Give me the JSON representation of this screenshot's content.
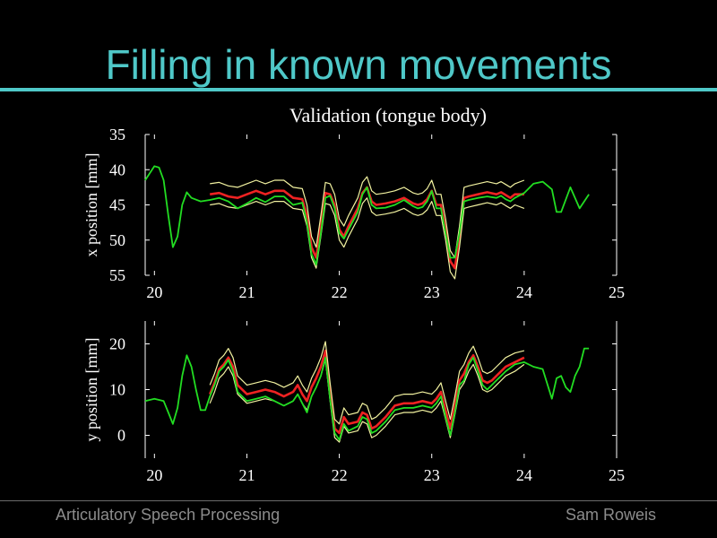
{
  "slide": {
    "title": "Filling in known movements",
    "footer_left": "Articulatory Speech Processing",
    "footer_right": "Sam Roweis"
  },
  "colors": {
    "title": "#4fc8c8",
    "rule": "#4fc8c8",
    "green": "#22dd22",
    "red": "#ee2222",
    "yellow": "#f2f2a0",
    "axis": "#ffffff"
  },
  "chart_data": [
    {
      "type": "line",
      "title": "Validation (tongue body)",
      "xlabel": "",
      "ylabel": "x position [mm]",
      "xlim": [
        19.9,
        25
      ],
      "ylim": [
        35,
        55
      ],
      "y_inverted": true,
      "xticks": [
        20,
        21,
        22,
        23,
        24,
        25
      ],
      "yticks": [
        35,
        40,
        45,
        50,
        55
      ],
      "grid": false,
      "series": [
        {
          "role": "green",
          "x": [
            19.9,
            20.0,
            20.05,
            20.1,
            20.15,
            20.2,
            20.25,
            20.3,
            20.35,
            20.4,
            20.5,
            20.6,
            20.7,
            20.8,
            20.9,
            21.0,
            21.1,
            21.2,
            21.3,
            21.4,
            21.5,
            21.6,
            21.65,
            21.7,
            21.75,
            21.8,
            21.85,
            21.9,
            21.95,
            22.0,
            22.05,
            22.1,
            22.2,
            22.25,
            22.3,
            22.35,
            22.4,
            22.5,
            22.6,
            22.7,
            22.8,
            22.85,
            22.9,
            22.95,
            23.0,
            23.05,
            23.1,
            23.15,
            23.2,
            23.25,
            23.3,
            23.35,
            23.4,
            23.5,
            23.6,
            23.7,
            23.75,
            23.8,
            23.85,
            23.9,
            24.0,
            24.1,
            24.2,
            24.3,
            24.35,
            24.4,
            24.5,
            24.6,
            24.7
          ],
          "y": [
            41.5,
            39.5,
            39.7,
            41.5,
            46.5,
            51.0,
            49.5,
            45.0,
            43.2,
            44.0,
            44.5,
            44.3,
            44.0,
            44.5,
            45.5,
            44.8,
            44.0,
            44.6,
            43.8,
            43.8,
            45.0,
            44.7,
            47.5,
            52.0,
            53.5,
            49.0,
            44.0,
            43.7,
            45.5,
            49.0,
            49.8,
            48.5,
            46.0,
            43.5,
            42.5,
            45.0,
            45.5,
            45.4,
            45.0,
            44.3,
            45.2,
            45.5,
            45.3,
            44.5,
            43.0,
            45.5,
            45.5,
            49.0,
            52.5,
            52.5,
            49.0,
            44.5,
            44.3,
            44.0,
            43.8,
            44.0,
            43.7,
            44.2,
            44.5,
            44.0,
            43.3,
            42.0,
            41.7,
            42.8,
            46.0,
            46.0,
            42.5,
            45.5,
            43.5
          ]
        },
        {
          "role": "red",
          "x": [
            20.6,
            20.7,
            20.8,
            20.9,
            21.0,
            21.1,
            21.2,
            21.3,
            21.4,
            21.5,
            21.6,
            21.65,
            21.7,
            21.75,
            21.8,
            21.85,
            21.9,
            21.95,
            22.0,
            22.05,
            22.1,
            22.2,
            22.25,
            22.3,
            22.35,
            22.4,
            22.5,
            22.6,
            22.7,
            22.8,
            22.85,
            22.9,
            22.95,
            23.0,
            23.05,
            23.1,
            23.15,
            23.2,
            23.25,
            23.3,
            23.35,
            23.4,
            23.5,
            23.6,
            23.7,
            23.75,
            23.8,
            23.85,
            23.9,
            24.0
          ],
          "y": [
            43.5,
            43.3,
            43.8,
            44.0,
            43.5,
            43.0,
            43.5,
            43.0,
            43.0,
            44.0,
            44.2,
            46.5,
            51.0,
            52.5,
            48.0,
            43.3,
            43.5,
            45.0,
            48.5,
            49.5,
            48.0,
            45.5,
            43.3,
            42.5,
            44.5,
            45.0,
            44.8,
            44.5,
            44.0,
            44.8,
            45.0,
            44.8,
            44.2,
            43.0,
            45.0,
            45.0,
            48.5,
            53.0,
            54.0,
            49.5,
            44.0,
            43.8,
            43.5,
            43.2,
            43.5,
            43.2,
            43.6,
            44.0,
            43.5,
            43.5
          ]
        },
        {
          "role": "yellow",
          "x": [
            20.6,
            20.7,
            20.8,
            20.9,
            21.0,
            21.1,
            21.2,
            21.3,
            21.4,
            21.5,
            21.6,
            21.65,
            21.7,
            21.75,
            21.8,
            21.85,
            21.9,
            21.95,
            22.0,
            22.05,
            22.1,
            22.2,
            22.25,
            22.3,
            22.35,
            22.4,
            22.5,
            22.6,
            22.7,
            22.8,
            22.85,
            22.9,
            22.95,
            23.0,
            23.05,
            23.1,
            23.15,
            23.2,
            23.25,
            23.3,
            23.35,
            23.4,
            23.5,
            23.6,
            23.7,
            23.75,
            23.8,
            23.85,
            23.9,
            24.0
          ],
          "y": [
            42.0,
            41.8,
            42.3,
            42.5,
            42.0,
            41.5,
            42.0,
            41.5,
            41.5,
            42.5,
            42.7,
            45.0,
            49.5,
            51.0,
            46.5,
            41.8,
            42.0,
            43.5,
            47.0,
            48.0,
            46.5,
            44.0,
            41.8,
            41.0,
            43.0,
            43.5,
            43.3,
            43.0,
            42.5,
            43.3,
            43.5,
            43.3,
            42.7,
            41.5,
            43.5,
            43.5,
            47.0,
            51.5,
            52.5,
            48.0,
            42.5,
            42.3,
            42.0,
            41.7,
            42.0,
            41.7,
            42.1,
            42.5,
            42.0,
            41.5
          ]
        },
        {
          "role": "yellow",
          "x": [
            20.6,
            20.7,
            20.8,
            20.9,
            21.0,
            21.1,
            21.2,
            21.3,
            21.4,
            21.5,
            21.6,
            21.65,
            21.7,
            21.75,
            21.8,
            21.85,
            21.9,
            21.95,
            22.0,
            22.05,
            22.1,
            22.2,
            22.25,
            22.3,
            22.35,
            22.4,
            22.5,
            22.6,
            22.7,
            22.8,
            22.85,
            22.9,
            22.95,
            23.0,
            23.05,
            23.1,
            23.15,
            23.2,
            23.25,
            23.3,
            23.35,
            23.4,
            23.5,
            23.6,
            23.7,
            23.75,
            23.8,
            23.85,
            23.9,
            24.0
          ],
          "y": [
            45.0,
            44.8,
            45.3,
            45.5,
            45.0,
            44.5,
            45.0,
            44.5,
            44.5,
            45.5,
            45.7,
            48.0,
            52.5,
            54.0,
            49.5,
            44.8,
            45.0,
            46.5,
            50.0,
            51.0,
            49.5,
            47.0,
            44.8,
            44.0,
            46.0,
            46.5,
            46.3,
            46.0,
            45.5,
            46.3,
            46.5,
            46.3,
            45.7,
            44.5,
            46.5,
            46.5,
            50.0,
            54.5,
            55.5,
            51.0,
            45.5,
            45.3,
            45.0,
            44.7,
            45.0,
            44.7,
            45.1,
            45.5,
            45.0,
            45.5
          ]
        }
      ]
    },
    {
      "type": "line",
      "title": "",
      "xlabel": "",
      "ylabel": "y position [mm]",
      "xlim": [
        19.9,
        25
      ],
      "ylim": [
        -5,
        25
      ],
      "xticks": [
        20,
        21,
        22,
        23,
        24,
        25
      ],
      "yticks": [
        0,
        10,
        20
      ],
      "grid": false,
      "series": [
        {
          "role": "green",
          "x": [
            19.9,
            20.0,
            20.1,
            20.15,
            20.2,
            20.25,
            20.3,
            20.35,
            20.4,
            20.45,
            20.5,
            20.55,
            20.6,
            20.65,
            20.7,
            20.75,
            20.8,
            20.85,
            20.9,
            21.0,
            21.1,
            21.2,
            21.3,
            21.4,
            21.5,
            21.55,
            21.6,
            21.65,
            21.7,
            21.75,
            21.8,
            21.85,
            21.9,
            21.95,
            22.0,
            22.05,
            22.1,
            22.2,
            22.25,
            22.3,
            22.35,
            22.4,
            22.5,
            22.6,
            22.7,
            22.8,
            22.9,
            23.0,
            23.05,
            23.1,
            23.15,
            23.2,
            23.25,
            23.3,
            23.35,
            23.4,
            23.45,
            23.5,
            23.55,
            23.6,
            23.65,
            23.7,
            23.75,
            23.8,
            23.9,
            24.0,
            24.1,
            24.2,
            24.3,
            24.35,
            24.4,
            24.45,
            24.5,
            24.55,
            24.6,
            24.65,
            24.7
          ],
          "y": [
            7.5,
            8.0,
            7.5,
            5.0,
            2.5,
            6.0,
            13.0,
            17.5,
            15.0,
            10.0,
            5.5,
            5.5,
            8.5,
            11.0,
            14.0,
            15.0,
            16.5,
            14.0,
            9.5,
            7.5,
            8.0,
            8.5,
            7.5,
            6.5,
            7.5,
            9.0,
            7.0,
            5.0,
            8.5,
            10.5,
            13.0,
            17.0,
            8.0,
            0.5,
            -1.0,
            2.5,
            1.0,
            2.0,
            4.0,
            3.5,
            0.5,
            1.0,
            3.0,
            5.5,
            6.0,
            6.0,
            6.5,
            6.0,
            7.0,
            8.5,
            4.0,
            0.0,
            5.0,
            11.0,
            12.0,
            15.5,
            17.0,
            14.0,
            11.0,
            10.0,
            11.0,
            12.0,
            13.0,
            14.0,
            15.5,
            16.0,
            15.0,
            14.5,
            8.0,
            12.5,
            13.0,
            10.5,
            9.5,
            13.0,
            15.0,
            19.0,
            19.0
          ]
        },
        {
          "role": "red",
          "x": [
            20.6,
            20.65,
            20.7,
            20.75,
            20.8,
            20.85,
            20.9,
            21.0,
            21.1,
            21.2,
            21.3,
            21.4,
            21.5,
            21.55,
            21.6,
            21.65,
            21.7,
            21.75,
            21.8,
            21.85,
            21.9,
            21.95,
            22.0,
            22.05,
            22.1,
            22.2,
            22.25,
            22.3,
            22.35,
            22.4,
            22.5,
            22.6,
            22.7,
            22.8,
            22.9,
            23.0,
            23.05,
            23.1,
            23.15,
            23.2,
            23.25,
            23.3,
            23.35,
            23.4,
            23.45,
            23.5,
            23.55,
            23.6,
            23.65,
            23.7,
            23.75,
            23.8,
            23.9,
            24.0
          ],
          "y": [
            9.0,
            11.5,
            14.5,
            15.5,
            17.0,
            15.0,
            11.0,
            9.0,
            9.5,
            10.0,
            9.5,
            8.5,
            9.5,
            11.0,
            9.0,
            7.5,
            10.5,
            12.5,
            15.0,
            18.5,
            9.5,
            1.5,
            0.5,
            4.0,
            2.5,
            3.0,
            5.0,
            4.5,
            1.5,
            2.0,
            4.0,
            6.5,
            7.0,
            7.0,
            7.5,
            7.0,
            8.0,
            9.5,
            5.5,
            1.5,
            6.5,
            12.0,
            13.5,
            16.0,
            17.5,
            15.0,
            12.0,
            11.5,
            12.0,
            13.0,
            14.0,
            15.0,
            16.0,
            17.0
          ]
        },
        {
          "role": "yellow",
          "x": [
            20.6,
            20.65,
            20.7,
            20.75,
            20.8,
            20.85,
            20.9,
            21.0,
            21.1,
            21.2,
            21.3,
            21.4,
            21.5,
            21.55,
            21.6,
            21.65,
            21.7,
            21.75,
            21.8,
            21.85,
            21.9,
            21.95,
            22.0,
            22.05,
            22.1,
            22.2,
            22.25,
            22.3,
            22.35,
            22.4,
            22.5,
            22.6,
            22.7,
            22.8,
            22.9,
            23.0,
            23.05,
            23.1,
            23.15,
            23.2,
            23.25,
            23.3,
            23.35,
            23.4,
            23.45,
            23.5,
            23.55,
            23.6,
            23.65,
            23.7,
            23.75,
            23.8,
            23.9,
            24.0
          ],
          "y": [
            11.0,
            13.5,
            16.5,
            17.5,
            19.0,
            17.0,
            13.0,
            11.0,
            11.5,
            12.0,
            11.5,
            10.5,
            11.5,
            13.0,
            11.0,
            9.5,
            12.5,
            14.5,
            17.0,
            20.5,
            11.5,
            3.5,
            2.5,
            6.0,
            4.5,
            5.0,
            7.0,
            6.5,
            3.5,
            4.0,
            6.0,
            8.5,
            9.0,
            9.0,
            9.5,
            9.0,
            10.0,
            11.5,
            7.5,
            3.5,
            8.5,
            14.0,
            15.5,
            18.0,
            19.5,
            17.0,
            14.0,
            13.5,
            14.0,
            15.0,
            16.0,
            17.0,
            18.0,
            18.5
          ]
        },
        {
          "role": "yellow",
          "x": [
            20.6,
            20.65,
            20.7,
            20.75,
            20.8,
            20.85,
            20.9,
            21.0,
            21.1,
            21.2,
            21.3,
            21.4,
            21.5,
            21.55,
            21.6,
            21.65,
            21.7,
            21.75,
            21.8,
            21.85,
            21.9,
            21.95,
            22.0,
            22.05,
            22.1,
            22.2,
            22.25,
            22.3,
            22.35,
            22.4,
            22.5,
            22.6,
            22.7,
            22.8,
            22.9,
            23.0,
            23.05,
            23.1,
            23.15,
            23.2,
            23.25,
            23.3,
            23.35,
            23.4,
            23.45,
            23.5,
            23.55,
            23.6,
            23.65,
            23.7,
            23.75,
            23.8,
            23.9,
            24.0
          ],
          "y": [
            7.0,
            9.5,
            12.5,
            13.5,
            15.0,
            13.0,
            9.0,
            7.0,
            7.5,
            8.0,
            7.5,
            6.5,
            7.5,
            9.0,
            7.0,
            5.5,
            8.5,
            10.5,
            13.0,
            16.5,
            7.5,
            -0.5,
            -1.5,
            2.0,
            0.5,
            1.0,
            3.0,
            2.5,
            -0.5,
            0.0,
            2.0,
            4.5,
            5.0,
            5.0,
            5.5,
            5.0,
            6.0,
            7.5,
            3.5,
            -0.5,
            4.5,
            10.0,
            11.5,
            14.0,
            15.5,
            13.0,
            10.0,
            9.5,
            10.0,
            11.0,
            12.0,
            13.0,
            14.0,
            15.5
          ]
        }
      ]
    }
  ]
}
